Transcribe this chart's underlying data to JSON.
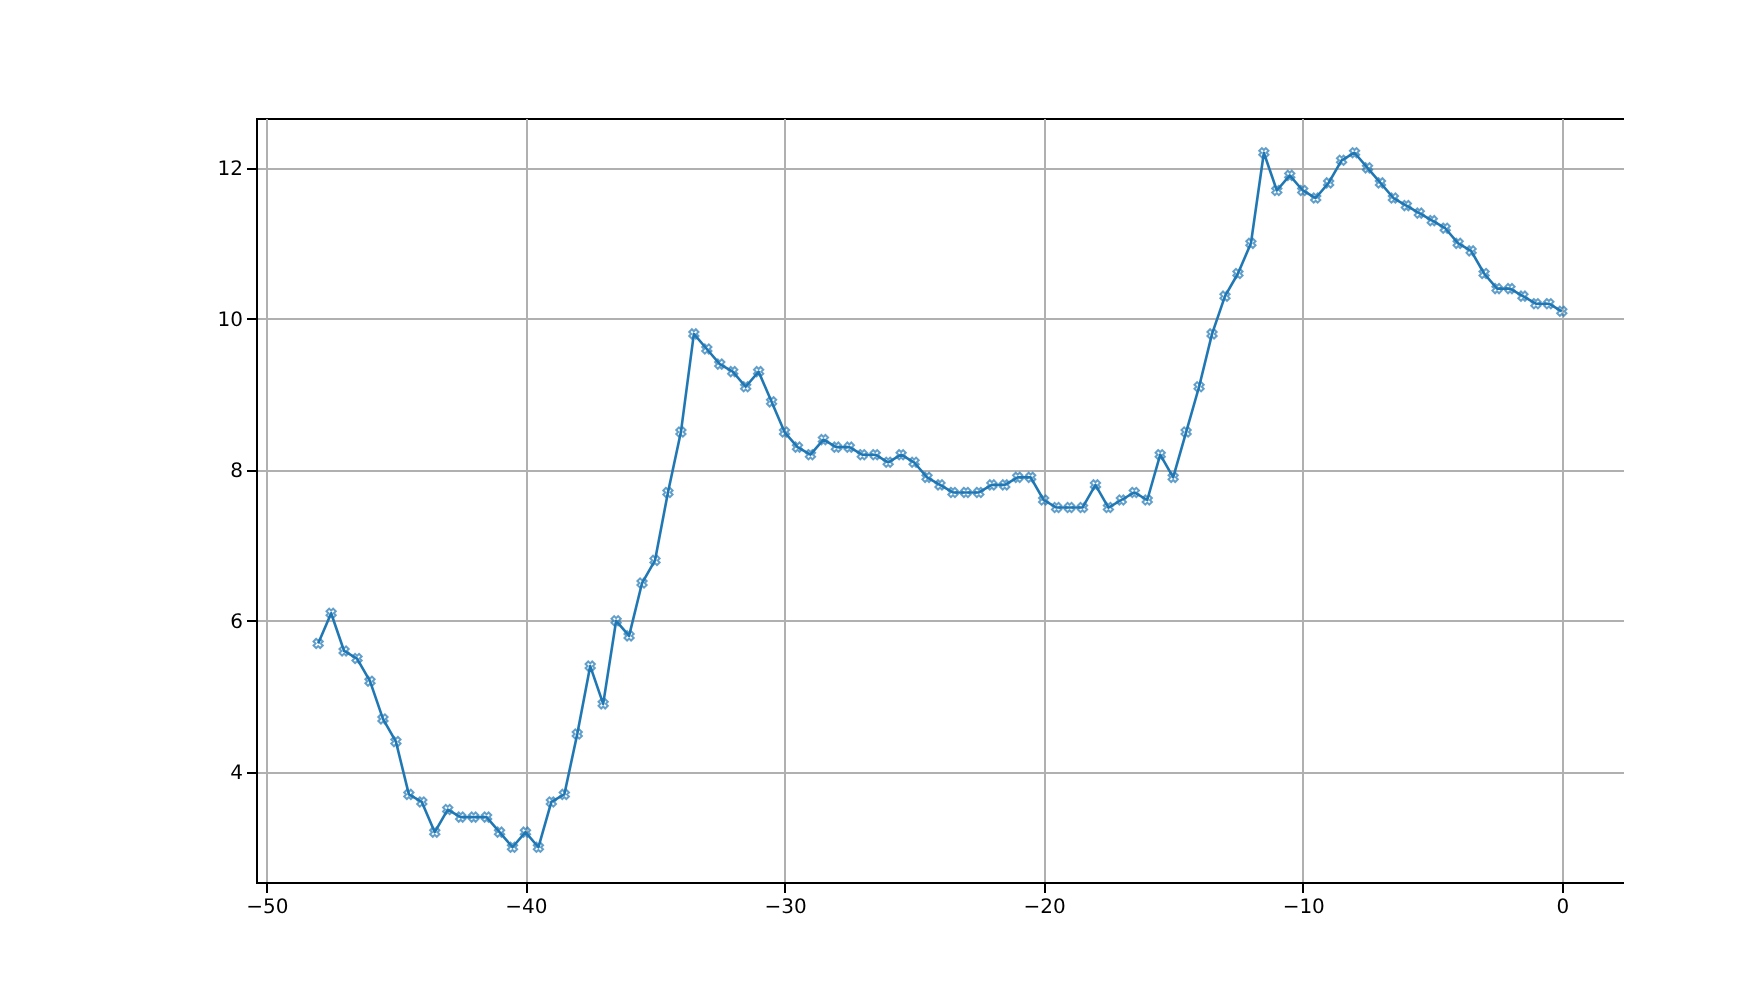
{
  "chart_data": {
    "type": "line",
    "marker": "cross",
    "line_style": "solid",
    "grid": true,
    "x": [
      -48,
      -47.5,
      -47,
      -46.5,
      -46,
      -45.5,
      -45,
      -44.5,
      -44,
      -43.5,
      -43,
      -42.5,
      -42,
      -41.5,
      -41,
      -40.5,
      -40,
      -39.5,
      -39,
      -38.5,
      -38,
      -37.5,
      -37,
      -36.5,
      -36,
      -35.5,
      -35,
      -34.5,
      -34,
      -33.5,
      -33,
      -32.5,
      -32,
      -31.5,
      -31,
      -30.5,
      -30,
      -29.5,
      -29,
      -28.5,
      -28,
      -27.5,
      -27,
      -26.5,
      -26,
      -25.5,
      -25,
      -24.5,
      -24,
      -23.5,
      -23,
      -22.5,
      -22,
      -21.5,
      -21,
      -20.5,
      -20,
      -19.5,
      -19,
      -18.5,
      -18,
      -17.5,
      -17,
      -16.5,
      -16,
      -15.5,
      -15,
      -14.5,
      -14,
      -13.5,
      -13,
      -12.5,
      -12,
      -11.5,
      -11,
      -10.5,
      -10,
      -9.5,
      -9,
      -8.5,
      -8,
      -7.5,
      -7,
      -6.5,
      -6,
      -5.5,
      -5,
      -4.5,
      -4,
      -3.5,
      -3,
      -2.5,
      -2,
      -1.5,
      -1,
      -0.5,
      0
    ],
    "series": [
      {
        "color": "#1f77b4",
        "values": [
          5.7,
          6.1,
          5.6,
          5.5,
          5.2,
          4.7,
          4.4,
          3.7,
          3.6,
          3.2,
          3.5,
          3.4,
          3.4,
          3.4,
          3.2,
          3.0,
          3.2,
          3.0,
          3.6,
          3.7,
          4.5,
          5.4,
          4.9,
          6.0,
          5.8,
          6.5,
          6.8,
          7.7,
          8.5,
          9.8,
          9.6,
          9.4,
          9.3,
          9.1,
          9.3,
          8.9,
          8.5,
          8.3,
          8.2,
          8.4,
          8.3,
          8.3,
          8.2,
          8.2,
          8.1,
          8.2,
          8.1,
          7.9,
          7.8,
          7.7,
          7.7,
          7.7,
          7.8,
          7.8,
          7.9,
          7.9,
          7.6,
          7.5,
          7.5,
          7.5,
          7.8,
          7.5,
          7.6,
          7.7,
          7.6,
          8.2,
          7.9,
          8.5,
          9.1,
          9.8,
          10.3,
          10.6,
          11.0,
          12.2,
          11.7,
          11.9,
          11.7,
          11.6,
          11.8,
          12.1,
          12.2,
          12.0,
          11.8,
          11.6,
          11.5,
          11.4,
          11.3,
          11.2,
          11.0,
          10.9,
          10.6,
          10.4,
          10.4,
          10.3,
          10.2,
          10.2,
          10.1
        ]
      }
    ],
    "xlim": [
      -50.4,
      2.4
    ],
    "xticks": [
      -50,
      -40,
      -30,
      -20,
      -10,
      0
    ],
    "ylim": [
      2.54,
      12.66
    ],
    "yticks": [
      4,
      6,
      8,
      10,
      12
    ]
  }
}
